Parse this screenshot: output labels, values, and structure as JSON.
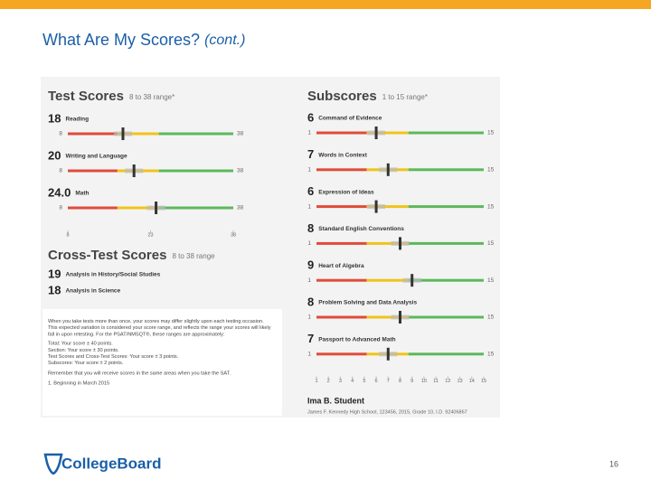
{
  "slide": {
    "title": "What Are My Scores?",
    "title_suffix": "(cont.)",
    "page_number": "16",
    "logo": "CollegeBoard"
  },
  "report": {
    "test_scores": {
      "title": "Test Scores",
      "range": "8 to 38 range*",
      "axis_ticks": [
        8,
        23,
        38
      ],
      "items": [
        {
          "score": 18,
          "name": "Reading",
          "min": 8,
          "max": 38
        },
        {
          "score": 20,
          "name": "Writing and Language",
          "min": 8,
          "max": 38
        },
        {
          "score": 24,
          "score_label": "24.0",
          "name": "Math",
          "min": 8,
          "max": 38
        }
      ]
    },
    "cross_test_scores": {
      "title": "Cross-Test Scores",
      "range": "8 to 38 range",
      "items": [
        {
          "score": 19,
          "name": "Analysis in History/Social Studies"
        },
        {
          "score": 18,
          "name": "Analysis in Science"
        }
      ]
    },
    "subscores": {
      "title": "Subscores",
      "range": "1 to 15 range*",
      "axis_ticks": [
        1,
        2,
        3,
        4,
        5,
        6,
        7,
        8,
        9,
        10,
        11,
        12,
        13,
        14,
        15
      ],
      "items": [
        {
          "score": 6,
          "name": "Command of Evidence",
          "min": 1,
          "max": 15
        },
        {
          "score": 7,
          "name": "Words in Context",
          "min": 1,
          "max": 15
        },
        {
          "score": 6,
          "name": "Expression of Ideas",
          "min": 1,
          "max": 15
        },
        {
          "score": 8,
          "name": "Standard English Conventions",
          "min": 1,
          "max": 15
        },
        {
          "score": 9,
          "name": "Heart of Algebra",
          "min": 1,
          "max": 15
        },
        {
          "score": 8,
          "name": "Problem Solving and Data Analysis",
          "min": 1,
          "max": 15
        },
        {
          "score": 7,
          "name": "Passport to Advanced Math",
          "min": 1,
          "max": 15
        }
      ]
    },
    "notes": {
      "intro": "When you take tests more than once, your scores may differ slightly upon each testing occasion. This expected variation is considered your score range, and reflects the range your scores will likely fall in upon retesting. For the PSAT/NMSQT®, these ranges are approximately:",
      "lines": [
        "Total: Your score ± 40 points.",
        "Section: Your score ± 30 points.",
        "Test Scores and Cross-Test Scores: Your score ± 3 points.",
        "Subscores: Your score ± 2 points."
      ],
      "remember": "Remember that you will receive scores in the same areas when you take the SAT.",
      "footnote": "1. Beginning in March 2015"
    },
    "student": {
      "name": "Ima B. Student",
      "details": "James F. Kennedy High School, 123456, 2015, Grade 10, I.D. 92406867"
    }
  }
}
